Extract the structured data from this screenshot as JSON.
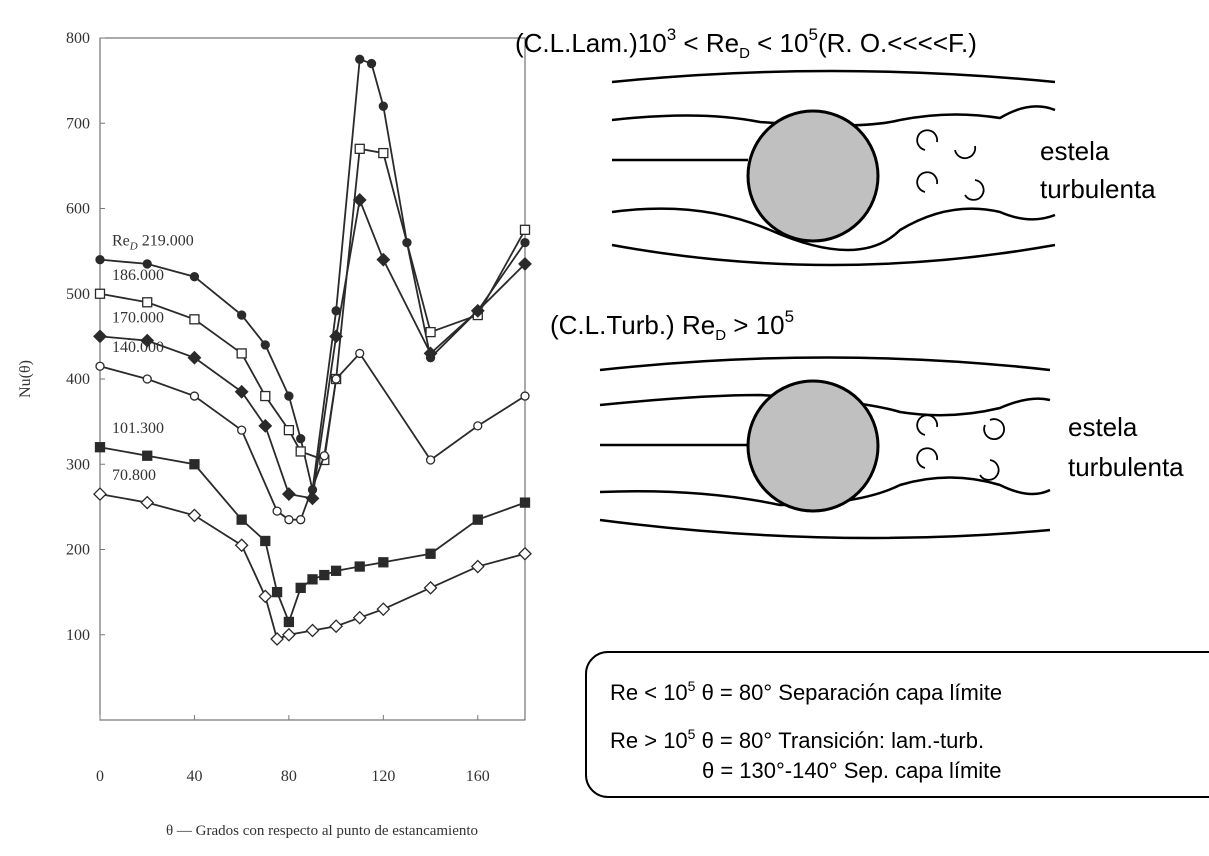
{
  "chart_data": {
    "type": "line",
    "x_label": "θ — Grados con respecto al punto de estancamiento",
    "y_label": "Nu(θ)",
    "series_label_prefix": "Re",
    "series_label_prefix_sub": "D",
    "xlim": [
      0,
      180
    ],
    "xticks": [
      0,
      40,
      80,
      120,
      160
    ],
    "ylim": [
      0,
      800
    ],
    "yticks": [
      100,
      200,
      300,
      400,
      500,
      600,
      700,
      800
    ],
    "series": [
      {
        "name": "219.000",
        "color": "#2a2a2a",
        "marker": "circle-filled",
        "x": [
          0,
          20,
          40,
          60,
          70,
          80,
          85,
          90,
          100,
          110,
          115,
          120,
          130,
          140,
          160,
          180
        ],
        "values": [
          540,
          535,
          520,
          475,
          440,
          380,
          330,
          270,
          480,
          775,
          770,
          720,
          560,
          425,
          480,
          560
        ]
      },
      {
        "name": "186.000",
        "color": "#2a2a2a",
        "marker": "square-open",
        "x": [
          0,
          20,
          40,
          60,
          70,
          80,
          85,
          95,
          100,
          110,
          120,
          140,
          160,
          180
        ],
        "values": [
          500,
          490,
          470,
          430,
          380,
          340,
          315,
          305,
          400,
          670,
          665,
          455,
          475,
          575
        ]
      },
      {
        "name": "170.000",
        "color": "#2a2a2a",
        "marker": "diamond-filled",
        "x": [
          0,
          20,
          40,
          60,
          70,
          80,
          90,
          100,
          110,
          120,
          140,
          160,
          180
        ],
        "values": [
          450,
          445,
          425,
          385,
          345,
          265,
          260,
          450,
          610,
          540,
          430,
          480,
          535
        ]
      },
      {
        "name": "140.000",
        "color": "#2a2a2a",
        "marker": "circle-open",
        "x": [
          0,
          20,
          40,
          60,
          75,
          80,
          85,
          95,
          100,
          110,
          140,
          160,
          180
        ],
        "values": [
          415,
          400,
          380,
          340,
          245,
          235,
          235,
          310,
          400,
          430,
          305,
          345,
          380
        ]
      },
      {
        "name": "101.300",
        "color": "#2a2a2a",
        "marker": "square-filled",
        "x": [
          0,
          20,
          40,
          60,
          70,
          75,
          80,
          85,
          90,
          95,
          100,
          110,
          120,
          140,
          160,
          180
        ],
        "values": [
          320,
          310,
          300,
          235,
          210,
          150,
          115,
          155,
          165,
          170,
          175,
          180,
          185,
          195,
          235,
          255
        ]
      },
      {
        "name": "70.800",
        "color": "#2a2a2a",
        "marker": "diamond-open",
        "x": [
          0,
          20,
          40,
          60,
          70,
          75,
          80,
          90,
          100,
          110,
          120,
          140,
          160,
          180
        ],
        "values": [
          265,
          255,
          240,
          205,
          145,
          95,
          100,
          105,
          110,
          120,
          130,
          155,
          180,
          195
        ]
      }
    ]
  },
  "diagrams": [
    {
      "heading": [
        "(C.L.Lam.)10",
        "3",
        " < Re",
        "D",
        " < 10",
        "5",
        "(R. O.<<<<F.)"
      ],
      "wake": [
        "estela",
        "turbulenta"
      ]
    },
    {
      "heading": [
        "(C.L.Turb.) ",
        "Re",
        "D",
        " > 10",
        "5"
      ],
      "wake": [
        "estela",
        "turbulenta"
      ]
    }
  ],
  "notes": [
    [
      "Re < 10",
      "5",
      "  θ = 80°   Separación capa límite"
    ],
    [
      "Re > 10",
      "5",
      "  θ = 80°   Transición: lam.-turb."
    ],
    [
      "θ = 130°-140° Sep. capa límite"
    ]
  ]
}
